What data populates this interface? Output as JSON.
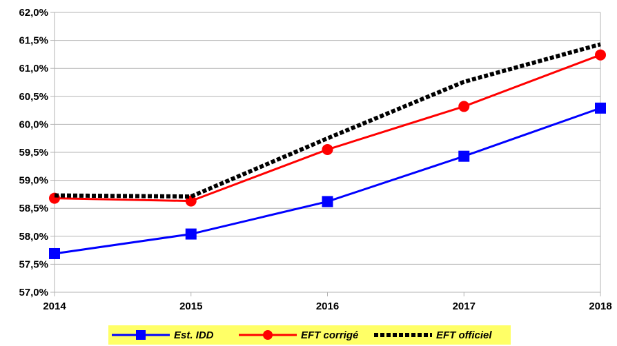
{
  "chart_data": {
    "type": "line",
    "title": "",
    "xlabel": "",
    "ylabel": "",
    "x": [
      "2014",
      "2015",
      "2016",
      "2017",
      "2018"
    ],
    "ylim": [
      57.0,
      62.0
    ],
    "y_tick_labels": [
      "62,0%",
      "61,5%",
      "61,0%",
      "60,5%",
      "60,0%",
      "59,5%",
      "59,0%",
      "58,5%",
      "58,0%",
      "57,5%",
      "57,0%"
    ],
    "y_ticks": [
      62.0,
      61.5,
      61.0,
      60.5,
      60.0,
      59.5,
      59.0,
      58.5,
      58.0,
      57.5,
      57.0
    ],
    "grid": true,
    "legend_position": "bottom",
    "legend_background": "#ffff66",
    "series": [
      {
        "name": "Est. IDD",
        "color": "#0000ff",
        "marker": "square",
        "line_style": "solid",
        "values": [
          57.69,
          58.04,
          58.62,
          59.43,
          60.29
        ]
      },
      {
        "name": "EFT corrigé",
        "color": "#ff0000",
        "marker": "circle",
        "line_style": "solid",
        "values": [
          58.68,
          58.63,
          59.55,
          60.32,
          61.24
        ]
      },
      {
        "name": "EFT officiel",
        "color": "#000000",
        "marker": "none",
        "line_style": "dotted",
        "values": [
          58.73,
          58.71,
          59.75,
          60.76,
          61.43
        ]
      }
    ]
  }
}
